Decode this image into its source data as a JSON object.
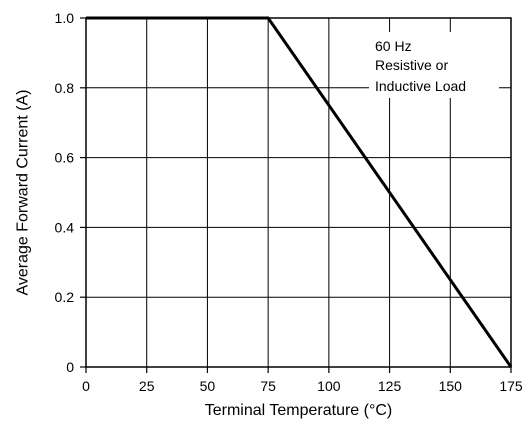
{
  "chart_data": {
    "type": "line",
    "title": "",
    "xlabel": "Terminal Temperature (°C)",
    "ylabel": "Average Forward Current (A)",
    "xlim": [
      0,
      175
    ],
    "ylim": [
      0,
      1.0
    ],
    "x_ticks": [
      0,
      25,
      50,
      75,
      100,
      125,
      150,
      175
    ],
    "x_tick_labels": [
      "0",
      "25",
      "50",
      "75",
      "100",
      "125",
      "150",
      "175"
    ],
    "y_ticks": [
      0,
      0.2,
      0.4,
      0.6,
      0.8,
      1.0
    ],
    "y_tick_labels": [
      "0",
      "0.2",
      "0.4",
      "0.6",
      "0.8",
      "1.0"
    ],
    "grid": true,
    "legend": "none",
    "series": [
      {
        "x": [
          0,
          75,
          175
        ],
        "y": [
          1.0,
          1.0,
          0
        ],
        "color": "#000000"
      }
    ],
    "annotations": [
      "60 Hz",
      "Resistive or",
      "Inductive Load"
    ]
  }
}
